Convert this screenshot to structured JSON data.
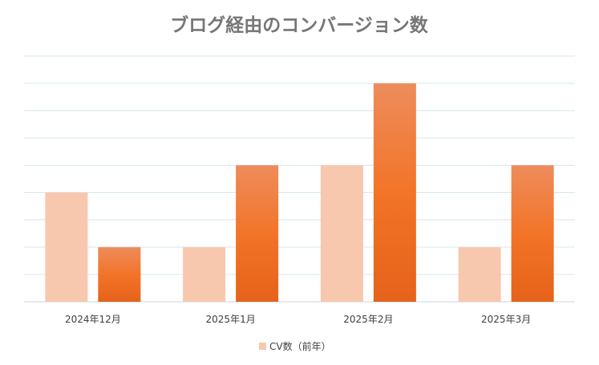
{
  "chart_data": {
    "type": "bar",
    "title": "ブログ経由のコンバージョン数",
    "categories": [
      "2024年12月",
      "2025年1月",
      "2025年2月",
      "2025年3月"
    ],
    "series": [
      {
        "name": "CV数（前年）",
        "values": [
          4,
          2,
          5,
          2
        ],
        "color": "#f8c8ae"
      },
      {
        "values": [
          2,
          5,
          8,
          5
        ],
        "color": "#f07a30"
      }
    ],
    "ylim": [
      0,
      9
    ],
    "y_gridlines": 9,
    "grid": true,
    "y_tick_labels_shown": false,
    "legend": "bottom-center"
  }
}
